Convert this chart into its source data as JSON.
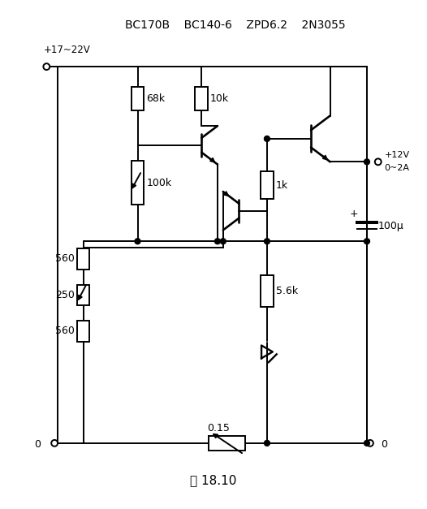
{
  "title": "BC170B    BC140-6    ZPD6.2    2N3055",
  "caption": "图 18.10",
  "bg": "#ffffff",
  "lc": "#000000",
  "fig_w": 5.26,
  "fig_h": 6.27,
  "dpi": 100,
  "vcc_label": "+17~22V",
  "vout_label1": "+12V",
  "vout_label2": "0~2A",
  "gnd": "0",
  "r68k": "68k",
  "r10k": "10k",
  "r100k": "100k",
  "r1k": "1k",
  "r560a": "560",
  "r250": "250",
  "r560b": "560",
  "r5k6": "5.6k",
  "r015": "0.15",
  "cap": "100µ"
}
